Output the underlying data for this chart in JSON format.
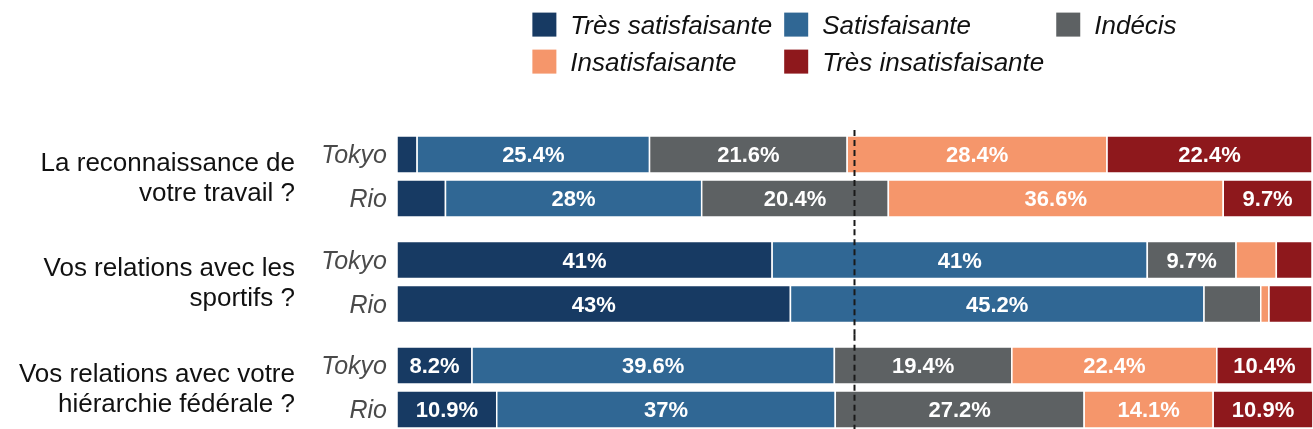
{
  "chart_data": [
    {
      "type": "bar",
      "orientation": "horizontal",
      "stacked": true,
      "ylabel": "La reconnaissance de votre travail ?",
      "categories": [
        "Tokyo",
        "Rio"
      ],
      "xlim": [
        0,
        100
      ],
      "tick_labels": "y",
      "legend": "top",
      "ref_lines": [
        {
          "axis": "x",
          "value": 50,
          "line_style": "dashed",
          "color": "#1a1a1a"
        }
      ],
      "series": [
        {
          "name": "Très satisfaisante",
          "color": "#173a63",
          "values": [
            2.2,
            5.3
          ],
          "value_labels": [
            null,
            null
          ]
        },
        {
          "name": "Satisfaisante",
          "color": "#306794",
          "values": [
            25.4,
            28
          ],
          "value_labels": [
            "25.4%",
            "28%"
          ]
        },
        {
          "name": "Indécis",
          "color": "#5d6163",
          "values": [
            21.6,
            20.4
          ],
          "value_labels": [
            "21.6%",
            "20.4%"
          ]
        },
        {
          "name": "Insatisfaisante",
          "color": "#f5966b",
          "values": [
            28.4,
            36.6
          ],
          "value_labels": [
            "28.4%",
            "36.6%"
          ]
        },
        {
          "name": "Très insatisfaisante",
          "color": "#8e181c",
          "values": [
            22.4,
            9.7
          ],
          "value_labels": [
            "22.4%",
            "9.7%"
          ]
        }
      ]
    },
    {
      "type": "bar",
      "orientation": "horizontal",
      "stacked": true,
      "ylabel": "Vos relations avec les sportifs ?",
      "categories": [
        "Tokyo",
        "Rio"
      ],
      "xlim": [
        0,
        100
      ],
      "tick_labels": "y",
      "ref_lines": [
        {
          "axis": "x",
          "value": 50,
          "line_style": "dashed",
          "color": "#1a1a1a"
        }
      ],
      "series": [
        {
          "color": "#173a63",
          "values": [
            41,
            43
          ],
          "value_labels": [
            "41%",
            "43%"
          ]
        },
        {
          "color": "#306794",
          "values": [
            41,
            45.2
          ],
          "value_labels": [
            "41%",
            "45.2%"
          ]
        },
        {
          "color": "#5d6163",
          "values": [
            9.7,
            6.2
          ],
          "value_labels": [
            "9.7%",
            null
          ]
        },
        {
          "color": "#f5966b",
          "values": [
            4.4,
            0.9
          ],
          "value_labels": [
            null,
            null
          ]
        },
        {
          "color": "#8e181c",
          "values": [
            3.9,
            4.7
          ],
          "value_labels": [
            null,
            null
          ]
        }
      ]
    },
    {
      "type": "bar",
      "orientation": "horizontal",
      "stacked": true,
      "ylabel": "Vos relations avec votre hiérarchie fédérale ?",
      "categories": [
        "Tokyo",
        "Rio"
      ],
      "xlim": [
        0,
        100
      ],
      "tick_labels": "y",
      "ref_lines": [
        {
          "axis": "x",
          "value": 50,
          "line_style": "dashed",
          "color": "#1a1a1a"
        }
      ],
      "series": [
        {
          "color": "#173a63",
          "values": [
            8.2,
            10.9
          ],
          "value_labels": [
            "8.2%",
            "10.9%"
          ]
        },
        {
          "color": "#306794",
          "values": [
            39.6,
            37
          ],
          "value_labels": [
            "39.6%",
            "37%"
          ]
        },
        {
          "color": "#5d6163",
          "values": [
            19.4,
            27.2
          ],
          "value_labels": [
            "19.4%",
            "27.2%"
          ]
        },
        {
          "color": "#f5966b",
          "values": [
            22.4,
            14.1
          ],
          "value_labels": [
            "22.4%",
            "14.1%"
          ]
        },
        {
          "color": "#8e181c",
          "values": [
            10.4,
            10.9
          ],
          "value_labels": [
            "10.4%",
            "10.9%"
          ]
        }
      ]
    }
  ]
}
